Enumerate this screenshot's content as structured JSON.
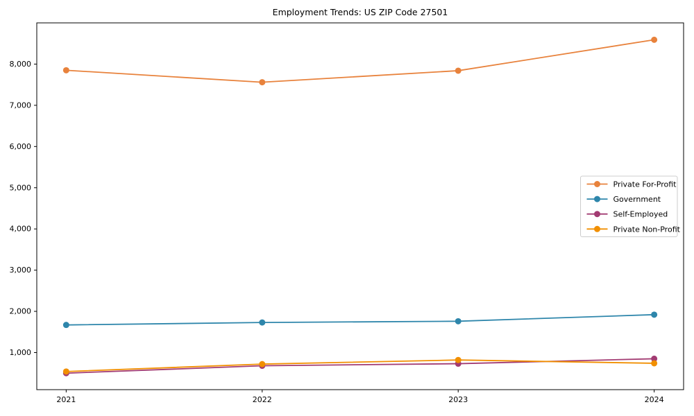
{
  "title": "Employment Trends: US ZIP Code 27501",
  "chart_data": {
    "type": "line",
    "title": "Employment Trends: US ZIP Code 27501",
    "xlabel": "",
    "ylabel": "",
    "x": [
      "2021",
      "2022",
      "2023",
      "2024"
    ],
    "series": [
      {
        "name": "Private For-Profit",
        "color": "#E8823C",
        "values": [
          7850,
          7560,
          7840,
          8590
        ]
      },
      {
        "name": "Government",
        "color": "#2E86AB",
        "values": [
          1670,
          1730,
          1760,
          1920
        ]
      },
      {
        "name": "Self-Employed",
        "color": "#A23B72",
        "values": [
          500,
          680,
          730,
          850
        ]
      },
      {
        "name": "Private Non-Profit",
        "color": "#F18F01",
        "values": [
          540,
          720,
          820,
          740
        ]
      }
    ],
    "ylim": [
      100,
      9000
    ],
    "yticks": [
      1000,
      2000,
      3000,
      4000,
      5000,
      6000,
      7000,
      8000
    ],
    "ytick_labels": [
      "1,000",
      "2,000",
      "3,000",
      "4,000",
      "5,000",
      "6,000",
      "7,000",
      "8,000"
    ],
    "grid": false,
    "legend_position": "center right",
    "marker": "circle",
    "line_width": 1.8,
    "marker_radius": 4.5
  }
}
